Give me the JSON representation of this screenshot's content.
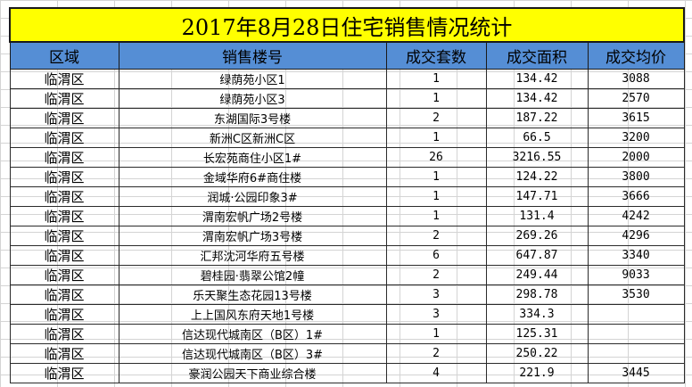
{
  "title": "2017年8月28日住宅销售情况统计",
  "columns": [
    "区域",
    "销售楼号",
    "成交套数",
    "成交面积",
    "成交均价"
  ],
  "rows": [
    [
      "临渭区",
      "绿荫苑小区1",
      "1",
      "134.42",
      "3088"
    ],
    [
      "临渭区",
      "绿荫苑小区3",
      "1",
      "134.42",
      "2570"
    ],
    [
      "临渭区",
      "东湖国际3号楼",
      "2",
      "187.22",
      "3615"
    ],
    [
      "临渭区",
      "新洲C区新洲C区",
      "1",
      "66.5",
      "3200"
    ],
    [
      "临渭区",
      "长宏苑商住小区1#",
      "26",
      "3216.55",
      "2000"
    ],
    [
      "临渭区",
      "金域华府6#商住楼",
      "1",
      "124.22",
      "3800"
    ],
    [
      "临渭区",
      "润城·公园印象3#",
      "1",
      "147.71",
      "3666"
    ],
    [
      "临渭区",
      "渭南宏帆广场2号楼",
      "1",
      "131.4",
      "4242"
    ],
    [
      "临渭区",
      "渭南宏帆广场3号楼",
      "2",
      "269.26",
      "4296"
    ],
    [
      "临渭区",
      "汇邦沈河华府五号楼",
      "6",
      "647.87",
      "3340"
    ],
    [
      "临渭区",
      "碧桂园·翡翠公馆2幢",
      "2",
      "249.44",
      "9033"
    ],
    [
      "临渭区",
      "乐天聚生态花园13号楼",
      "3",
      "298.78",
      "3530"
    ],
    [
      "临渭区",
      "上上国风东府天地1号楼",
      "3",
      "334.3",
      ""
    ],
    [
      "临渭区",
      "信达现代城南区（B区）1#",
      "1",
      "125.31",
      ""
    ],
    [
      "临渭区",
      "信达现代城南区（B区）3#",
      "2",
      "250.22",
      ""
    ],
    [
      "临渭区",
      "豪润公园天下商业综合楼",
      "4",
      "221.9",
      "3445"
    ]
  ],
  "colors": {
    "title_bg": "#ffff00",
    "header_bg": "#558ed5",
    "grid": "#d4d4d4",
    "border": "#2b2b2b"
  }
}
